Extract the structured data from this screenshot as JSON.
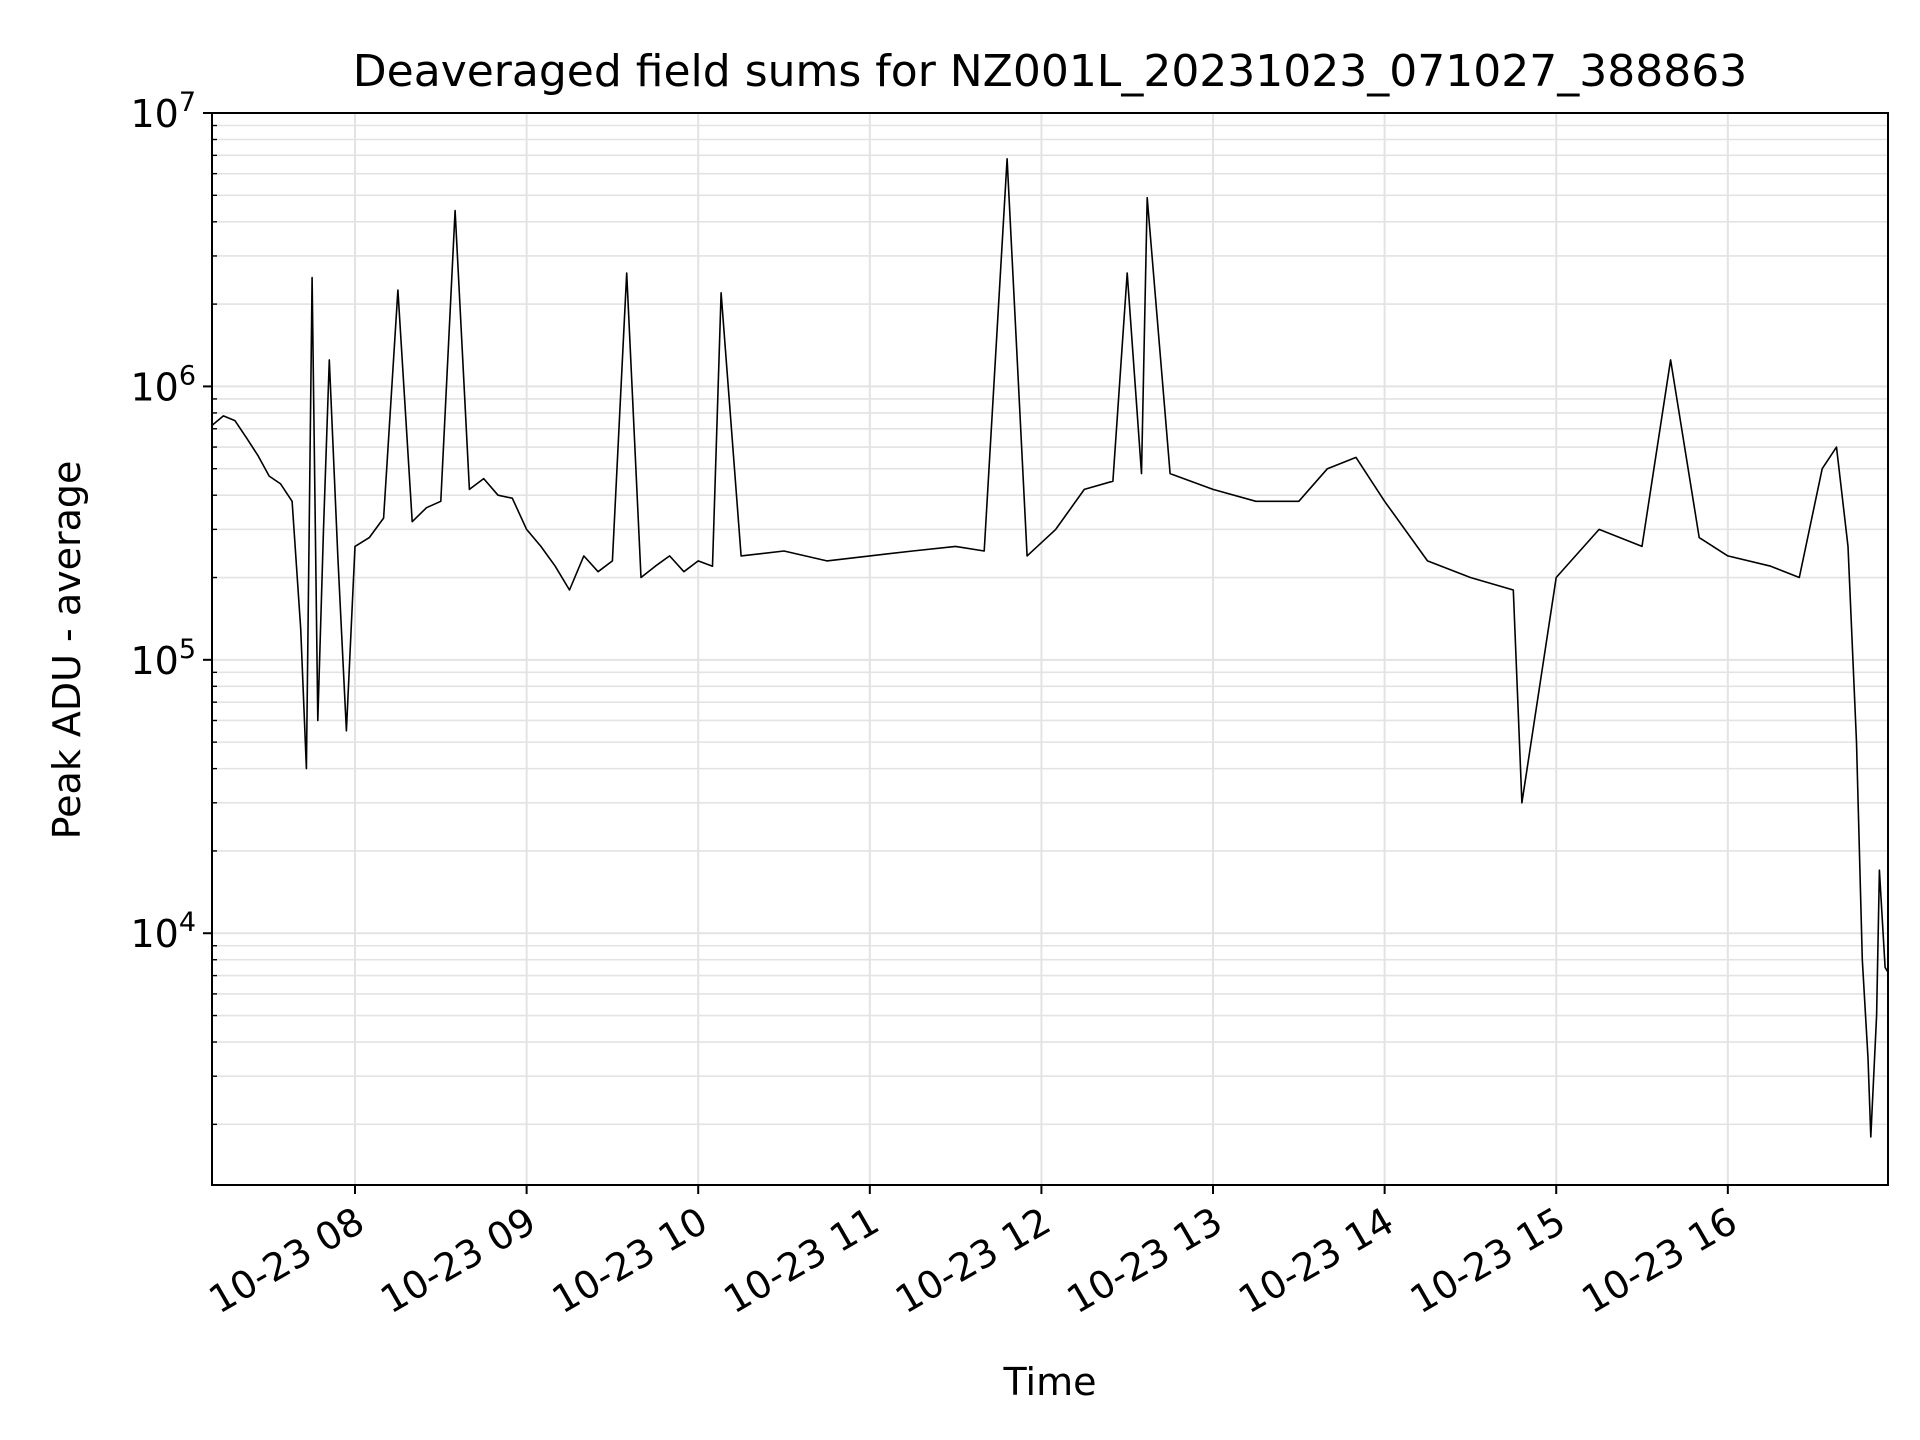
{
  "chart_data": {
    "type": "line",
    "title": "Deaveraged field sums for NZ001L_20231023_071027_388863",
    "xlabel": "Time",
    "ylabel": "Peak ADU - average",
    "x_scale": "time",
    "y_scale": "log",
    "xlim": [
      "2023-10-23 07:10",
      "2023-10-23 16:56"
    ],
    "ylim": [
      1200,
      10000000
    ],
    "grid": "major and minor, light gray",
    "line_color": "#000000",
    "x_ticks": [
      "10-23 08",
      "10-23 09",
      "10-23 10",
      "10-23 11",
      "10-23 12",
      "10-23 13",
      "10-23 14",
      "10-23 15",
      "10-23 16"
    ],
    "y_ticks": [
      {
        "base": "10",
        "exp": "4"
      },
      {
        "base": "10",
        "exp": "5"
      },
      {
        "base": "10",
        "exp": "6"
      },
      {
        "base": "10",
        "exp": "7"
      }
    ],
    "series": [
      {
        "points": [
          [
            "2023-10-23 07:10",
            720000
          ],
          [
            "2023-10-23 07:14",
            780000
          ],
          [
            "2023-10-23 07:18",
            750000
          ],
          [
            "2023-10-23 07:22",
            650000
          ],
          [
            "2023-10-23 07:26",
            560000
          ],
          [
            "2023-10-23 07:30",
            470000
          ],
          [
            "2023-10-23 07:34",
            440000
          ],
          [
            "2023-10-23 07:38",
            380000
          ],
          [
            "2023-10-23 07:41",
            130000
          ],
          [
            "2023-10-23 07:43",
            40000
          ],
          [
            "2023-10-23 07:45",
            2500000
          ],
          [
            "2023-10-23 07:47",
            60000
          ],
          [
            "2023-10-23 07:49",
            300000
          ],
          [
            "2023-10-23 07:51",
            1250000
          ],
          [
            "2023-10-23 07:54",
            240000
          ],
          [
            "2023-10-23 07:57",
            55000
          ],
          [
            "2023-10-23 08:00",
            260000
          ],
          [
            "2023-10-23 08:05",
            280000
          ],
          [
            "2023-10-23 08:10",
            330000
          ],
          [
            "2023-10-23 08:15",
            2250000
          ],
          [
            "2023-10-23 08:20",
            320000
          ],
          [
            "2023-10-23 08:25",
            360000
          ],
          [
            "2023-10-23 08:30",
            380000
          ],
          [
            "2023-10-23 08:35",
            4400000
          ],
          [
            "2023-10-23 08:40",
            420000
          ],
          [
            "2023-10-23 08:45",
            460000
          ],
          [
            "2023-10-23 08:50",
            400000
          ],
          [
            "2023-10-23 08:55",
            390000
          ],
          [
            "2023-10-23 09:00",
            300000
          ],
          [
            "2023-10-23 09:05",
            260000
          ],
          [
            "2023-10-23 09:10",
            220000
          ],
          [
            "2023-10-23 09:15",
            180000
          ],
          [
            "2023-10-23 09:20",
            240000
          ],
          [
            "2023-10-23 09:25",
            210000
          ],
          [
            "2023-10-23 09:30",
            230000
          ],
          [
            "2023-10-23 09:35",
            2600000
          ],
          [
            "2023-10-23 09:40",
            200000
          ],
          [
            "2023-10-23 09:45",
            220000
          ],
          [
            "2023-10-23 09:50",
            240000
          ],
          [
            "2023-10-23 09:55",
            210000
          ],
          [
            "2023-10-23 10:00",
            230000
          ],
          [
            "2023-10-23 10:05",
            220000
          ],
          [
            "2023-10-23 10:08",
            2200000
          ],
          [
            "2023-10-23 10:15",
            240000
          ],
          [
            "2023-10-23 10:30",
            250000
          ],
          [
            "2023-10-23 10:45",
            230000
          ],
          [
            "2023-10-23 11:00",
            240000
          ],
          [
            "2023-10-23 11:15",
            250000
          ],
          [
            "2023-10-23 11:30",
            260000
          ],
          [
            "2023-10-23 11:40",
            250000
          ],
          [
            "2023-10-23 11:48",
            6800000
          ],
          [
            "2023-10-23 11:55",
            240000
          ],
          [
            "2023-10-23 12:05",
            300000
          ],
          [
            "2023-10-23 12:15",
            420000
          ],
          [
            "2023-10-23 12:25",
            450000
          ],
          [
            "2023-10-23 12:30",
            2600000
          ],
          [
            "2023-10-23 12:35",
            480000
          ],
          [
            "2023-10-23 12:37",
            4900000
          ],
          [
            "2023-10-23 12:45",
            480000
          ],
          [
            "2023-10-23 13:00",
            420000
          ],
          [
            "2023-10-23 13:15",
            380000
          ],
          [
            "2023-10-23 13:30",
            380000
          ],
          [
            "2023-10-23 13:40",
            500000
          ],
          [
            "2023-10-23 13:50",
            550000
          ],
          [
            "2023-10-23 14:00",
            380000
          ],
          [
            "2023-10-23 14:15",
            230000
          ],
          [
            "2023-10-23 14:30",
            200000
          ],
          [
            "2023-10-23 14:45",
            180000
          ],
          [
            "2023-10-23 14:48",
            30000
          ],
          [
            "2023-10-23 15:00",
            200000
          ],
          [
            "2023-10-23 15:15",
            300000
          ],
          [
            "2023-10-23 15:30",
            260000
          ],
          [
            "2023-10-23 15:40",
            1250000
          ],
          [
            "2023-10-23 15:50",
            280000
          ],
          [
            "2023-10-23 16:00",
            240000
          ],
          [
            "2023-10-23 16:15",
            220000
          ],
          [
            "2023-10-23 16:25",
            200000
          ],
          [
            "2023-10-23 16:33",
            500000
          ],
          [
            "2023-10-23 16:38",
            600000
          ],
          [
            "2023-10-23 16:42",
            260000
          ],
          [
            "2023-10-23 16:45",
            50000
          ],
          [
            "2023-10-23 16:47",
            8000
          ],
          [
            "2023-10-23 16:49",
            3500
          ],
          [
            "2023-10-23 16:50",
            1800
          ],
          [
            "2023-10-23 16:52",
            5000
          ],
          [
            "2023-10-23 16:53",
            17000
          ],
          [
            "2023-10-23 16:55",
            7500
          ],
          [
            "2023-10-23 16:56",
            7200
          ]
        ]
      }
    ]
  }
}
